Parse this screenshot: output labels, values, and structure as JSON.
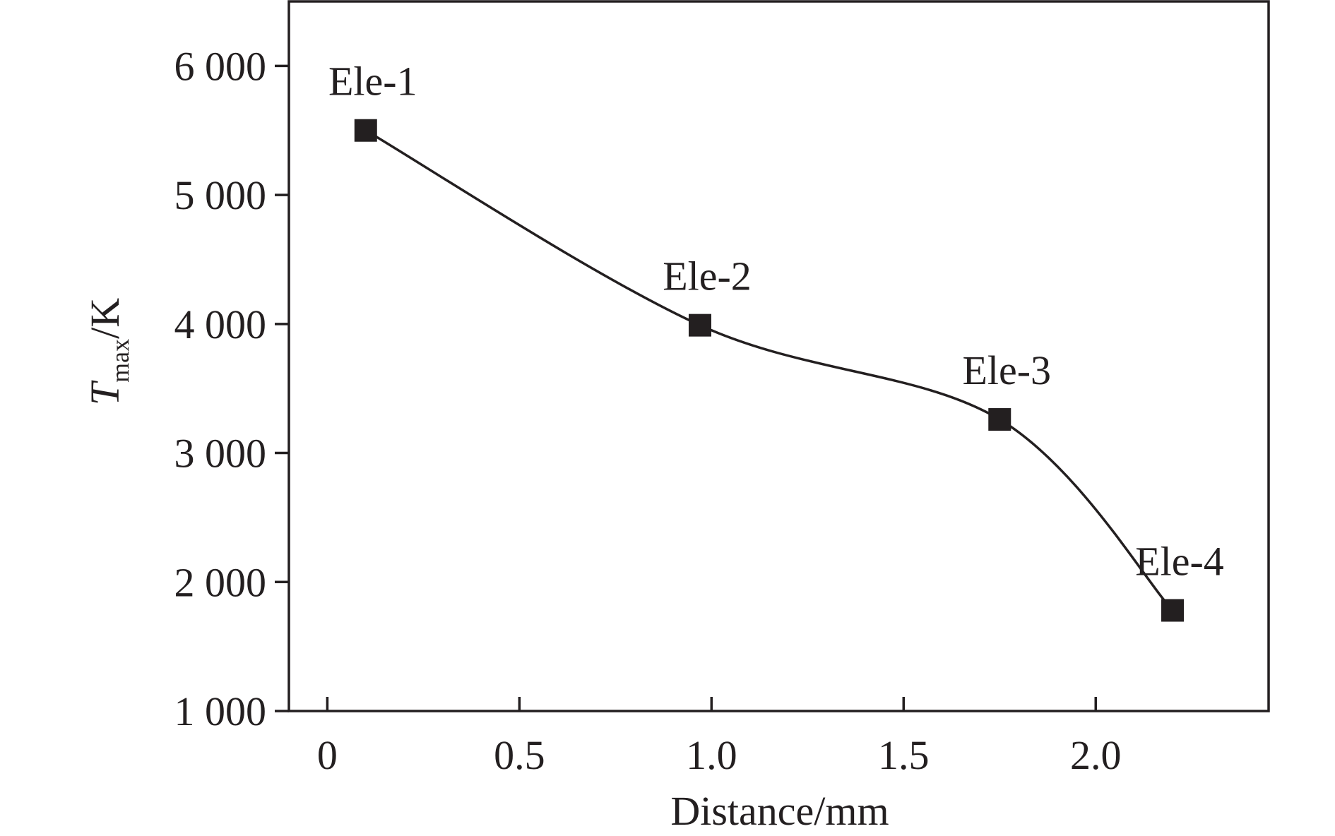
{
  "chart_data": {
    "type": "line",
    "title": "",
    "xlabel": "Distance/mm",
    "ylabel": {
      "main": "T",
      "subscript": "max",
      "suffix": "/K"
    },
    "xlim": [
      -0.1,
      2.45
    ],
    "ylim": [
      1000,
      6500
    ],
    "x_ticks": [
      {
        "value": 0,
        "label": "0"
      },
      {
        "value": 0.5,
        "label": "0.5"
      },
      {
        "value": 1.0,
        "label": "1.0"
      },
      {
        "value": 1.5,
        "label": "1.5"
      },
      {
        "value": 2.0,
        "label": "2.0"
      }
    ],
    "y_ticks": [
      {
        "value": 1000,
        "label": "1 000"
      },
      {
        "value": 2000,
        "label": "2 000"
      },
      {
        "value": 3000,
        "label": "3 000"
      },
      {
        "value": 4000,
        "label": "4 000"
      },
      {
        "value": 5000,
        "label": "5 000"
      },
      {
        "value": 6000,
        "label": "6 000"
      }
    ],
    "grid": false,
    "line_style": "smooth",
    "marker": "square",
    "color": "#231f20",
    "series": [
      {
        "points": [
          {
            "x": 0.1,
            "y": 5500,
            "label": "Ele-1"
          },
          {
            "x": 0.97,
            "y": 3990,
            "label": "Ele-2"
          },
          {
            "x": 1.75,
            "y": 3260,
            "label": "Ele-3"
          },
          {
            "x": 2.2,
            "y": 1780,
            "label": "Ele-4"
          }
        ]
      }
    ]
  }
}
